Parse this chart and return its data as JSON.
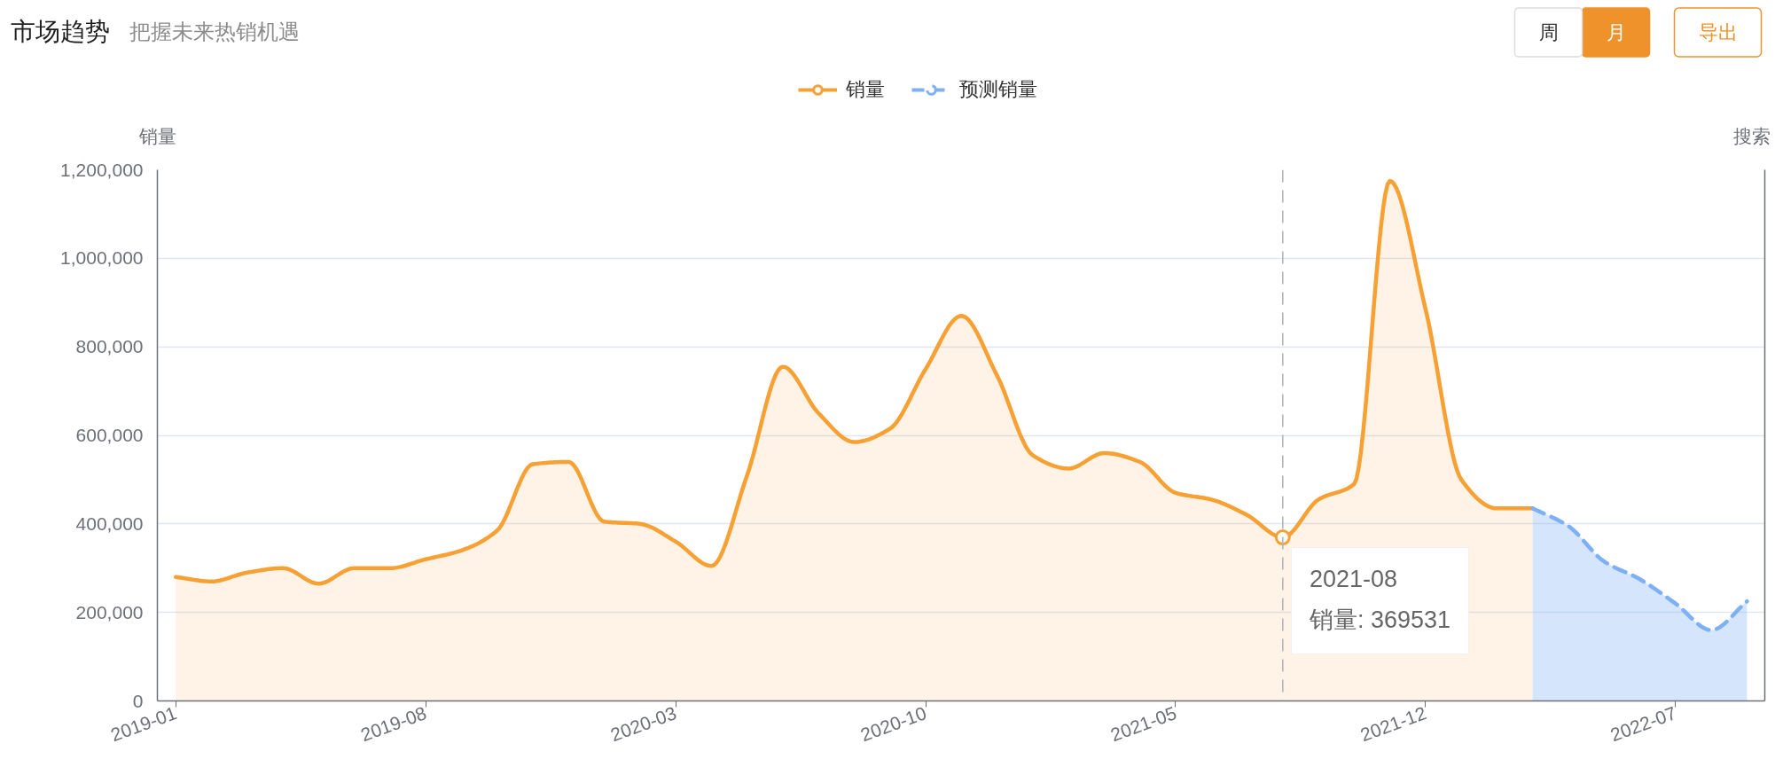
{
  "chart_data": {
    "type": "area",
    "title": "市场趋势",
    "subtitle": "把握未来热销机遇",
    "ylabel": "销量",
    "y2label": "搜索",
    "series": [
      {
        "name": "销量",
        "color": "#f7a033",
        "x": [
          "2019-01",
          "2019-02",
          "2019-03",
          "2019-04",
          "2019-05",
          "2019-06",
          "2019-07",
          "2019-08",
          "2019-09",
          "2019-10",
          "2019-11",
          "2019-12",
          "2020-01",
          "2020-02",
          "2020-03",
          "2020-04",
          "2020-05",
          "2020-06",
          "2020-07",
          "2020-08",
          "2020-09",
          "2020-10",
          "2020-11",
          "2020-12",
          "2021-01",
          "2021-02",
          "2021-03",
          "2021-04",
          "2021-05",
          "2021-06",
          "2021-07",
          "2021-08",
          "2021-09",
          "2021-10",
          "2021-11",
          "2021-12",
          "2022-01",
          "2022-02",
          "2022-03"
        ],
        "values": [
          280000,
          270000,
          290000,
          300000,
          265000,
          300000,
          300000,
          320000,
          340000,
          385000,
          535000,
          540000,
          405000,
          400000,
          360000,
          305000,
          510000,
          755000,
          650000,
          585000,
          615000,
          750000,
          870000,
          735000,
          555000,
          525000,
          560000,
          540000,
          470000,
          455000,
          420000,
          369531,
          455000,
          490000,
          1175000,
          885000,
          500000,
          435000,
          435000
        ]
      },
      {
        "name": "预测销量",
        "color": "#7db0f5",
        "line_style": "dashed",
        "x": [
          "2022-03",
          "2022-04",
          "2022-05",
          "2022-06",
          "2022-07",
          "2022-08",
          "2022-09"
        ],
        "values": [
          435000,
          395000,
          315000,
          275000,
          220000,
          160000,
          225000
        ]
      }
    ],
    "xlim": [
      "2018-12-16",
      "2022-09-16"
    ],
    "xticks": [
      "2019-01",
      "2019-08",
      "2020-03",
      "2020-10",
      "2021-05",
      "2021-12",
      "2022-07"
    ],
    "ylim": [
      0,
      1200000
    ],
    "yticks": [
      0,
      {
        "value": 200000,
        "label": "200,000"
      },
      {
        "value": 400000,
        "label": "400,000"
      },
      {
        "value": 600000,
        "label": "600,000"
      },
      {
        "value": 800000,
        "label": "800,000"
      },
      {
        "value": 1000000,
        "label": "1,000,000"
      },
      {
        "value": 1200000,
        "label": "1,200,000"
      }
    ],
    "grid": "y",
    "legend": "top",
    "ref_lines": [
      {
        "axis": "x",
        "value": "2021-08",
        "color": "#b4b4bc",
        "line_style": "dashed"
      }
    ],
    "annotations": [
      "周",
      "月",
      "导出",
      {
        "text": "2021-08\n销量: 369531",
        "x": "2021-08",
        "y": 369531
      }
    ]
  }
}
